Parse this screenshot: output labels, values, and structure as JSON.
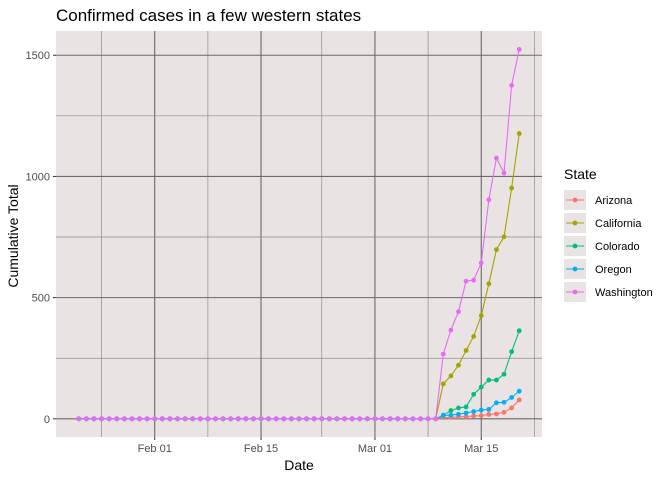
{
  "chart_data": {
    "type": "line",
    "title": "Confirmed cases in a few western states",
    "xlabel": "Date",
    "ylabel": "Cumulative Total",
    "x_start": "2020-01-22",
    "x_ticks": [
      {
        "date": "2020-02-01",
        "label": "Feb 01"
      },
      {
        "date": "2020-02-15",
        "label": "Feb 15"
      },
      {
        "date": "2020-03-01",
        "label": "Mar 01"
      },
      {
        "date": "2020-03-15",
        "label": "Mar 15"
      }
    ],
    "y_ticks": [
      0,
      500,
      1000,
      1500
    ],
    "ylim": [
      -75,
      1600
    ],
    "xlim": [
      "2020-01-19",
      "2020-03-23"
    ],
    "grid": true,
    "legend": {
      "title": "State",
      "position": "right"
    },
    "series": [
      {
        "name": "Arizona",
        "color": "#F8766D",
        "tail_start": "2020-03-09",
        "tail_values": [
          0,
          5,
          6,
          9,
          9,
          12,
          13,
          18,
          20,
          27,
          45,
          78
        ]
      },
      {
        "name": "California",
        "color": "#A3A500",
        "tail_start": "2020-03-09",
        "tail_values": [
          0,
          144,
          177,
          221,
          282,
          340,
          426,
          557,
          698,
          751,
          952,
          1177
        ]
      },
      {
        "name": "Colorado",
        "color": "#00BF7D",
        "tail_start": "2020-03-09",
        "tail_values": [
          0,
          15,
          34,
          45,
          49,
          101,
          131,
          160,
          160,
          184,
          277,
          363
        ]
      },
      {
        "name": "Oregon",
        "color": "#00B0F6",
        "tail_start": "2020-03-09",
        "tail_values": [
          0,
          14,
          15,
          19,
          24,
          30,
          36,
          39,
          66,
          68,
          88,
          114
        ]
      },
      {
        "name": "Washington",
        "color": "#E76BF3",
        "tail_start": "2020-03-09",
        "tail_values": [
          0,
          267,
          366,
          442,
          568,
          572,
          643,
          904,
          1076,
          1014,
          1376,
          1524
        ]
      }
    ]
  }
}
